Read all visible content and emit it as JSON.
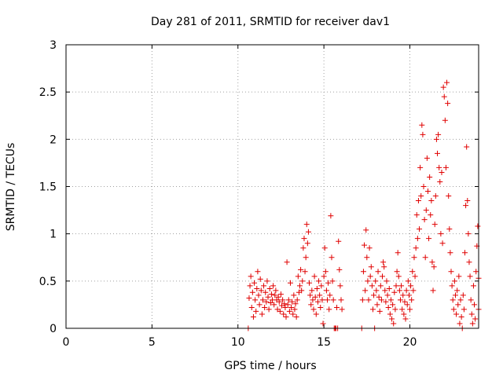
{
  "chart_data": {
    "type": "scatter",
    "title": "Day 281 of 2011, SRMTID for receiver dav1",
    "xlabel": "GPS time / hours",
    "ylabel": "SRMTID / TECUs",
    "xlim": [
      0,
      24
    ],
    "ylim": [
      0,
      3
    ],
    "xticks": [
      0,
      5,
      10,
      15,
      20
    ],
    "yticks": [
      0,
      0.5,
      1,
      1.5,
      2,
      2.5,
      3
    ],
    "ytick_labels": [
      "0",
      "0.5",
      "1",
      "1.5",
      "2",
      "2.5",
      "3"
    ],
    "grid": true,
    "marker": "+",
    "marker_color": "#e00000",
    "series": [
      {
        "name": "dav1",
        "points": [
          [
            10.6,
            0.0
          ],
          [
            10.65,
            0.32
          ],
          [
            10.7,
            0.45
          ],
          [
            10.75,
            0.55
          ],
          [
            10.8,
            0.22
          ],
          [
            10.85,
            0.38
          ],
          [
            10.9,
            0.12
          ],
          [
            10.95,
            0.48
          ],
          [
            11.0,
            0.3
          ],
          [
            11.05,
            0.18
          ],
          [
            11.1,
            0.42
          ],
          [
            11.15,
            0.6
          ],
          [
            11.2,
            0.35
          ],
          [
            11.25,
            0.25
          ],
          [
            11.3,
            0.52
          ],
          [
            11.35,
            0.4
          ],
          [
            11.4,
            0.15
          ],
          [
            11.45,
            0.3
          ],
          [
            11.5,
            0.45
          ],
          [
            11.55,
            0.22
          ],
          [
            11.6,
            0.38
          ],
          [
            11.65,
            0.28
          ],
          [
            11.7,
            0.5
          ],
          [
            11.75,
            0.33
          ],
          [
            11.8,
            0.2
          ],
          [
            11.85,
            0.42
          ],
          [
            11.9,
            0.27
          ],
          [
            11.95,
            0.36
          ],
          [
            12.0,
            0.3
          ],
          [
            12.05,
            0.45
          ],
          [
            12.1,
            0.25
          ],
          [
            12.15,
            0.35
          ],
          [
            12.2,
            0.4
          ],
          [
            12.25,
            0.3
          ],
          [
            12.3,
            0.2
          ],
          [
            12.35,
            0.33
          ],
          [
            12.4,
            0.28
          ],
          [
            12.45,
            0.18
          ],
          [
            12.5,
            0.36
          ],
          [
            12.55,
            0.24
          ],
          [
            12.6,
            0.3
          ],
          [
            12.65,
            0.15
          ],
          [
            12.7,
            0.26
          ],
          [
            12.75,
            0.22
          ],
          [
            12.8,
            0.12
          ],
          [
            12.85,
            0.7
          ],
          [
            12.9,
            0.25
          ],
          [
            12.95,
            0.3
          ],
          [
            13.0,
            0.18
          ],
          [
            13.05,
            0.48
          ],
          [
            13.1,
            0.22
          ],
          [
            13.15,
            0.28
          ],
          [
            13.2,
            0.15
          ],
          [
            13.25,
            0.35
          ],
          [
            13.3,
            0.2
          ],
          [
            13.35,
            0.26
          ],
          [
            13.4,
            0.12
          ],
          [
            13.45,
            0.3
          ],
          [
            13.5,
            0.55
          ],
          [
            13.55,
            0.38
          ],
          [
            13.6,
            0.45
          ],
          [
            13.65,
            0.62
          ],
          [
            13.7,
            0.4
          ],
          [
            13.75,
            0.5
          ],
          [
            13.8,
            0.85
          ],
          [
            13.85,
            0.95
          ],
          [
            13.9,
            0.6
          ],
          [
            13.95,
            0.75
          ],
          [
            14.0,
            1.1
          ],
          [
            14.05,
            0.9
          ],
          [
            14.1,
            1.02
          ],
          [
            14.15,
            0.48
          ],
          [
            14.2,
            0.35
          ],
          [
            14.25,
            0.25
          ],
          [
            14.3,
            0.4
          ],
          [
            14.35,
            0.3
          ],
          [
            14.4,
            0.2
          ],
          [
            14.45,
            0.55
          ],
          [
            14.5,
            0.33
          ],
          [
            14.55,
            0.15
          ],
          [
            14.6,
            0.42
          ],
          [
            14.65,
            0.28
          ],
          [
            14.7,
            0.5
          ],
          [
            14.75,
            0.35
          ],
          [
            14.8,
            0.22
          ],
          [
            14.85,
            0.45
          ],
          [
            14.9,
            0.3
          ],
          [
            14.95,
            0.05
          ],
          [
            15.0,
            0.55
          ],
          [
            15.05,
            0.85
          ],
          [
            15.1,
            0.6
          ],
          [
            15.15,
            0.4
          ],
          [
            15.2,
            0.3
          ],
          [
            15.25,
            0.48
          ],
          [
            15.3,
            0.2
          ],
          [
            15.35,
            0.35
          ],
          [
            15.4,
            1.19
          ],
          [
            15.45,
            0.75
          ],
          [
            15.5,
            0.5
          ],
          [
            15.55,
            0.3
          ],
          [
            15.6,
            0.0
          ],
          [
            15.65,
            0.0
          ],
          [
            15.7,
            0.0
          ],
          [
            15.75,
            0.22
          ],
          [
            15.8,
            0.0
          ],
          [
            15.85,
            0.92
          ],
          [
            15.9,
            0.62
          ],
          [
            15.95,
            0.45
          ],
          [
            16.0,
            0.3
          ],
          [
            16.05,
            0.2
          ],
          [
            17.2,
            0.0
          ],
          [
            17.25,
            0.3
          ],
          [
            17.3,
            0.6
          ],
          [
            17.35,
            0.88
          ],
          [
            17.4,
            0.4
          ],
          [
            17.45,
            1.04
          ],
          [
            17.5,
            0.75
          ],
          [
            17.55,
            0.5
          ],
          [
            17.6,
            0.3
          ],
          [
            17.65,
            0.85
          ],
          [
            17.7,
            0.55
          ],
          [
            17.75,
            0.65
          ],
          [
            17.8,
            0.45
          ],
          [
            17.85,
            0.2
          ],
          [
            17.9,
            0.35
          ],
          [
            17.95,
            0.0
          ],
          [
            18.0,
            0.5
          ],
          [
            18.05,
            0.4
          ],
          [
            18.1,
            0.25
          ],
          [
            18.15,
            0.6
          ],
          [
            18.2,
            0.33
          ],
          [
            18.25,
            0.18
          ],
          [
            18.3,
            0.45
          ],
          [
            18.35,
            0.3
          ],
          [
            18.4,
            0.55
          ],
          [
            18.45,
            0.7
          ],
          [
            18.5,
            0.65
          ],
          [
            18.55,
            0.4
          ],
          [
            18.6,
            0.28
          ],
          [
            18.65,
            0.5
          ],
          [
            18.7,
            0.35
          ],
          [
            18.75,
            0.22
          ],
          [
            18.8,
            0.42
          ],
          [
            18.85,
            0.15
          ],
          [
            18.9,
            0.3
          ],
          [
            18.95,
            0.1
          ],
          [
            19.0,
            0.25
          ],
          [
            19.05,
            0.05
          ],
          [
            19.1,
            0.38
          ],
          [
            19.15,
            0.2
          ],
          [
            19.2,
            0.45
          ],
          [
            19.25,
            0.6
          ],
          [
            19.3,
            0.8
          ],
          [
            19.35,
            0.55
          ],
          [
            19.4,
            0.4
          ],
          [
            19.45,
            0.3
          ],
          [
            19.5,
            0.45
          ],
          [
            19.55,
            0.2
          ],
          [
            19.6,
            0.35
          ],
          [
            19.65,
            0.15
          ],
          [
            19.7,
            0.28
          ],
          [
            19.75,
            0.1
          ],
          [
            19.8,
            0.4
          ],
          [
            19.85,
            0.25
          ],
          [
            19.9,
            0.5
          ],
          [
            19.95,
            0.35
          ],
          [
            20.0,
            0.2
          ],
          [
            20.05,
            0.45
          ],
          [
            20.1,
            0.3
          ],
          [
            20.15,
            0.6
          ],
          [
            20.2,
            0.4
          ],
          [
            20.25,
            0.75
          ],
          [
            20.3,
            0.55
          ],
          [
            20.35,
            0.85
          ],
          [
            20.4,
            1.2
          ],
          [
            20.45,
            0.95
          ],
          [
            20.5,
            1.35
          ],
          [
            20.55,
            1.05
          ],
          [
            20.6,
            1.7
          ],
          [
            20.65,
            1.4
          ],
          [
            20.7,
            2.15
          ],
          [
            20.75,
            2.05
          ],
          [
            20.8,
            1.5
          ],
          [
            20.85,
            1.15
          ],
          [
            20.9,
            0.75
          ],
          [
            20.95,
            1.25
          ],
          [
            21.0,
            1.8
          ],
          [
            21.05,
            1.45
          ],
          [
            21.1,
            0.95
          ],
          [
            21.15,
            1.6
          ],
          [
            21.2,
            1.2
          ],
          [
            21.25,
            1.35
          ],
          [
            21.3,
            0.7
          ],
          [
            21.35,
            0.4
          ],
          [
            21.4,
            0.65
          ],
          [
            21.45,
            1.1
          ],
          [
            21.5,
            1.4
          ],
          [
            21.55,
            2.0
          ],
          [
            21.6,
            1.85
          ],
          [
            21.65,
            2.05
          ],
          [
            21.7,
            1.7
          ],
          [
            21.75,
            1.55
          ],
          [
            21.8,
            1.0
          ],
          [
            21.85,
            1.65
          ],
          [
            21.9,
            0.9
          ],
          [
            21.95,
            2.55
          ],
          [
            22.0,
            2.45
          ],
          [
            22.05,
            2.2
          ],
          [
            22.1,
            1.7
          ],
          [
            22.15,
            2.6
          ],
          [
            22.2,
            2.38
          ],
          [
            22.25,
            1.4
          ],
          [
            22.3,
            1.05
          ],
          [
            22.35,
            0.8
          ],
          [
            22.4,
            0.6
          ],
          [
            22.45,
            0.45
          ],
          [
            22.5,
            0.3
          ],
          [
            22.55,
            0.2
          ],
          [
            22.6,
            0.5
          ],
          [
            22.65,
            0.35
          ],
          [
            22.7,
            0.15
          ],
          [
            22.75,
            0.4
          ],
          [
            22.8,
            0.25
          ],
          [
            22.85,
            0.55
          ],
          [
            22.9,
            0.05
          ],
          [
            22.95,
            0.3
          ],
          [
            23.0,
            0.12
          ],
          [
            23.05,
            0.0
          ],
          [
            23.1,
            0.35
          ],
          [
            23.15,
            0.2
          ],
          [
            23.2,
            0.8
          ],
          [
            23.25,
            1.3
          ],
          [
            23.3,
            1.92
          ],
          [
            23.35,
            1.35
          ],
          [
            23.4,
            1.0
          ],
          [
            23.45,
            0.7
          ],
          [
            23.5,
            0.55
          ],
          [
            23.55,
            0.3
          ],
          [
            23.6,
            0.15
          ],
          [
            23.65,
            0.05
          ],
          [
            23.7,
            0.45
          ],
          [
            23.75,
            0.25
          ],
          [
            23.8,
            0.1
          ],
          [
            23.85,
            0.6
          ],
          [
            23.9,
            0.87
          ],
          [
            23.95,
            1.08
          ],
          [
            24.0,
            0.2
          ],
          [
            24.0,
            0.53
          ]
        ]
      }
    ]
  }
}
